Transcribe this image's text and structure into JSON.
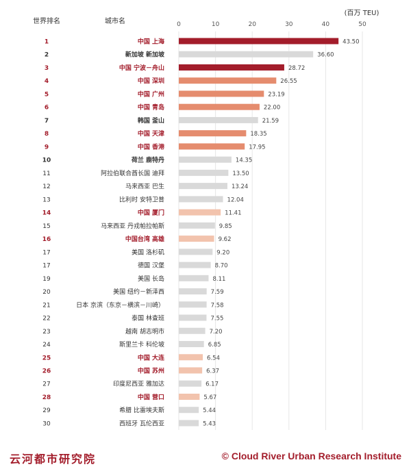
{
  "chart_data": {
    "type": "bar",
    "orientation": "horizontal",
    "rank_header": "世界排名",
    "city_header": "城市名",
    "unit_label": "(百万 TEU)",
    "xlim": [
      0,
      50
    ],
    "x_ticks": [
      0,
      10,
      20,
      30,
      40,
      50
    ],
    "grid": true,
    "rows": [
      {
        "rank": "1",
        "city": "中国 上海",
        "value": 43.5,
        "value_label": "43.50",
        "group": "china_top"
      },
      {
        "rank": "2",
        "city": "新加坡 新加坡",
        "value": 36.6,
        "value_label": "36.60",
        "group": "other_top"
      },
      {
        "rank": "3",
        "city": "中国 宁波－舟山",
        "value": 28.72,
        "value_label": "28.72",
        "group": "china_top"
      },
      {
        "rank": "4",
        "city": "中国 深圳",
        "value": 26.55,
        "value_label": "26.55",
        "group": "china_mid"
      },
      {
        "rank": "5",
        "city": "中国 广州",
        "value": 23.19,
        "value_label": "23.19",
        "group": "china_mid"
      },
      {
        "rank": "6",
        "city": "中国 青岛",
        "value": 22.0,
        "value_label": "22.00",
        "group": "china_mid"
      },
      {
        "rank": "7",
        "city": "韩国 釜山",
        "value": 21.59,
        "value_label": "21.59",
        "group": "other_top"
      },
      {
        "rank": "8",
        "city": "中国 天津",
        "value": 18.35,
        "value_label": "18.35",
        "group": "china_mid"
      },
      {
        "rank": "9",
        "city": "中国 香港",
        "value": 17.95,
        "value_label": "17.95",
        "group": "china_mid"
      },
      {
        "rank": "10",
        "city": "荷兰 鹿特丹",
        "value": 14.35,
        "value_label": "14.35",
        "group": "other_top"
      },
      {
        "rank": "11",
        "city": "阿拉伯联合酋长国 迪拜",
        "value": 13.5,
        "value_label": "13.50",
        "group": "other"
      },
      {
        "rank": "12",
        "city": "马来西亚 巴生",
        "value": 13.24,
        "value_label": "13.24",
        "group": "other"
      },
      {
        "rank": "13",
        "city": "比利时 安特卫普",
        "value": 12.04,
        "value_label": "12.04",
        "group": "other"
      },
      {
        "rank": "14",
        "city": "中国 厦门",
        "value": 11.41,
        "value_label": "11.41",
        "group": "china_low"
      },
      {
        "rank": "15",
        "city": "马来西亚 丹戎帕拉帕斯",
        "value": 9.85,
        "value_label": "9.85",
        "group": "other"
      },
      {
        "rank": "16",
        "city": "中国台湾  高雄",
        "value": 9.62,
        "value_label": "9.62",
        "group": "china_low"
      },
      {
        "rank": "17",
        "city": "美国 洛杉矶",
        "value": 9.2,
        "value_label": "9.20",
        "group": "other"
      },
      {
        "rank": "17",
        "city": "德国 汉堡",
        "value": 8.7,
        "value_label": "8.70",
        "group": "other"
      },
      {
        "rank": "19",
        "city": "美国 长岛",
        "value": 8.11,
        "value_label": "8.11",
        "group": "other"
      },
      {
        "rank": "20",
        "city": "美国 纽约－新泽西",
        "value": 7.59,
        "value_label": "7.59",
        "group": "other"
      },
      {
        "rank": "21",
        "city": "日本 京滨（东京－横滨－川崎）",
        "value": 7.58,
        "value_label": "7.58",
        "group": "other"
      },
      {
        "rank": "22",
        "city": "泰国 林查班",
        "value": 7.55,
        "value_label": "7.55",
        "group": "other"
      },
      {
        "rank": "23",
        "city": "越南 胡志明市",
        "value": 7.2,
        "value_label": "7.20",
        "group": "other"
      },
      {
        "rank": "24",
        "city": "斯里兰卡 科伦坡",
        "value": 6.85,
        "value_label": "6.85",
        "group": "other"
      },
      {
        "rank": "25",
        "city": "中国 大连",
        "value": 6.54,
        "value_label": "6.54",
        "group": "china_low"
      },
      {
        "rank": "26",
        "city": "中国 苏州",
        "value": 6.37,
        "value_label": "6.37",
        "group": "china_low"
      },
      {
        "rank": "27",
        "city": "印度尼西亚  雅加达",
        "value": 6.17,
        "value_label": "6.17",
        "group": "other"
      },
      {
        "rank": "28",
        "city": "中国 营口",
        "value": 5.67,
        "value_label": "5.67",
        "group": "china_low"
      },
      {
        "rank": "29",
        "city": "希腊 比雷埃夫斯",
        "value": 5.44,
        "value_label": "5.44",
        "group": "other"
      },
      {
        "rank": "30",
        "city": "西班牙 瓦伦西亚",
        "value": 5.43,
        "value_label": "5.43",
        "group": "other"
      }
    ],
    "colors": {
      "china_top": "#a31d2b",
      "china_mid": "#e58c6e",
      "china_low": "#f2c3ad",
      "other_top": "#d9d9d9",
      "other": "#d9d9d9",
      "china_text": "#a31d2b",
      "other_text": "#333333",
      "grid": "#e6e6e6",
      "axis_text": "#555555"
    }
  },
  "footer": {
    "left_text": "云河都市研究院",
    "right_text": "© Cloud River Urban Research Institute"
  }
}
